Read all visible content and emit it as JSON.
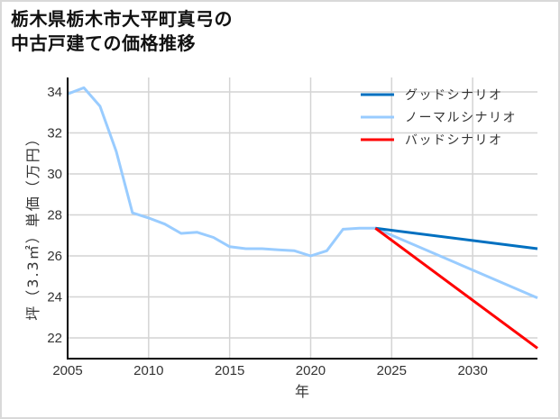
{
  "title_line1": "栃木県栃木市大平町真弓の",
  "title_line2": "中古戸建ての価格推移",
  "chart_data": {
    "type": "line",
    "title": "栃木県栃木市大平町真弓の中古戸建ての価格推移",
    "xlabel": "年",
    "ylabel": "坪（3.3㎡）単価（万円）",
    "xlim": [
      2005,
      2034
    ],
    "ylim": [
      21,
      34.8
    ],
    "x_ticks": [
      "2005",
      "2010",
      "2015",
      "2020",
      "2025",
      "2030"
    ],
    "y_ticks": [
      "22",
      "24",
      "26",
      "28",
      "30",
      "32",
      "34"
    ],
    "grid": true,
    "legend_position": "upper right",
    "series": [
      {
        "name": "ノーマルシナリオ",
        "color": "#99ccff",
        "x": [
          2005,
          2006,
          2007,
          2008,
          2009,
          2010,
          2011,
          2012,
          2013,
          2014,
          2015,
          2016,
          2017,
          2018,
          2019,
          2020,
          2021,
          2022,
          2023,
          2024,
          2034
        ],
        "values": [
          33.9,
          34.2,
          33.3,
          31.1,
          28.1,
          27.85,
          27.55,
          27.1,
          27.15,
          26.9,
          26.45,
          26.35,
          26.35,
          26.3,
          26.25,
          26.0,
          26.25,
          27.3,
          27.35,
          27.35,
          23.95
        ]
      },
      {
        "name": "グッドシナリオ",
        "color": "#0070c0",
        "x": [
          2024,
          2034
        ],
        "values": [
          27.35,
          26.35
        ]
      },
      {
        "name": "バッドシナリオ",
        "color": "#ff0000",
        "x": [
          2024,
          2034
        ],
        "values": [
          27.35,
          21.5
        ]
      }
    ]
  },
  "legend": [
    {
      "label": "グッドシナリオ",
      "color": "#0070c0"
    },
    {
      "label": "ノーマルシナリオ",
      "color": "#99ccff"
    },
    {
      "label": "バッドシナリオ",
      "color": "#ff0000"
    }
  ]
}
